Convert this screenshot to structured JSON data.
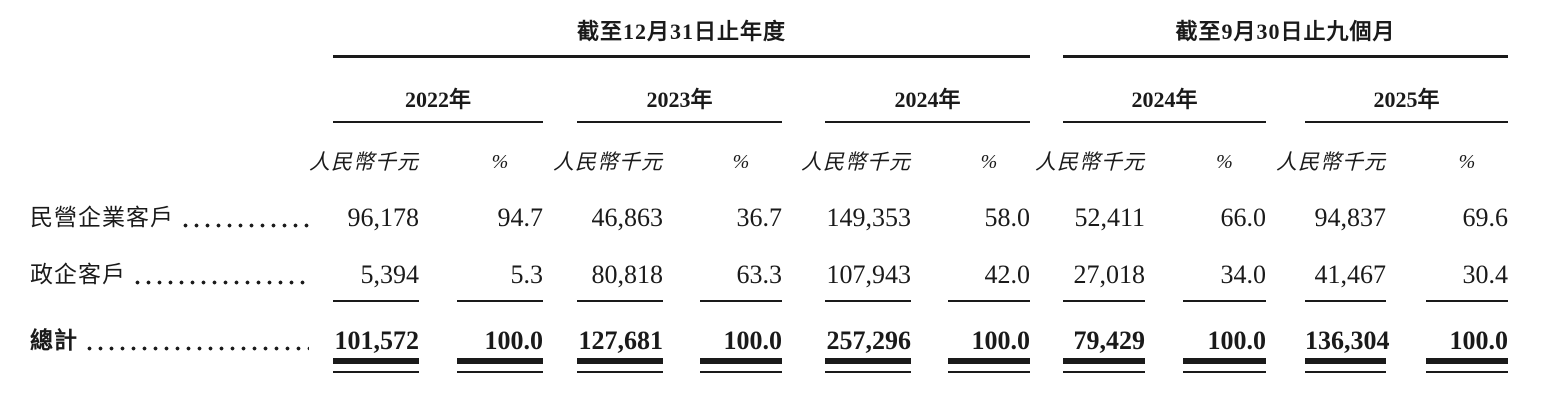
{
  "table": {
    "groups": [
      {
        "label": "截至12月31日止年度"
      },
      {
        "label": "截至9月30日止九個月"
      }
    ],
    "years": [
      "2022年",
      "2023年",
      "2024年",
      "2024年",
      "2025年"
    ],
    "unit_label": "人民幣千元",
    "percent_label": "%",
    "rows": [
      {
        "label": "民營企業客戶",
        "values": [
          "96,178",
          "94.7",
          "46,863",
          "36.7",
          "149,353",
          "58.0",
          "52,411",
          "66.0",
          "94,837",
          "69.6"
        ]
      },
      {
        "label": "政企客戶",
        "values": [
          "5,394",
          "5.3",
          "80,818",
          "63.3",
          "107,943",
          "42.0",
          "27,018",
          "34.0",
          "41,467",
          "30.4"
        ]
      }
    ],
    "total": {
      "label": "總計",
      "values": [
        "101,572",
        "100.0",
        "127,681",
        "100.0",
        "257,296",
        "100.0",
        "79,429",
        "100.0",
        "136,304",
        "100.0"
      ]
    }
  },
  "colors": {
    "text": "#1a1a1a",
    "rule": "#1a1a1a",
    "background": "#ffffff"
  }
}
